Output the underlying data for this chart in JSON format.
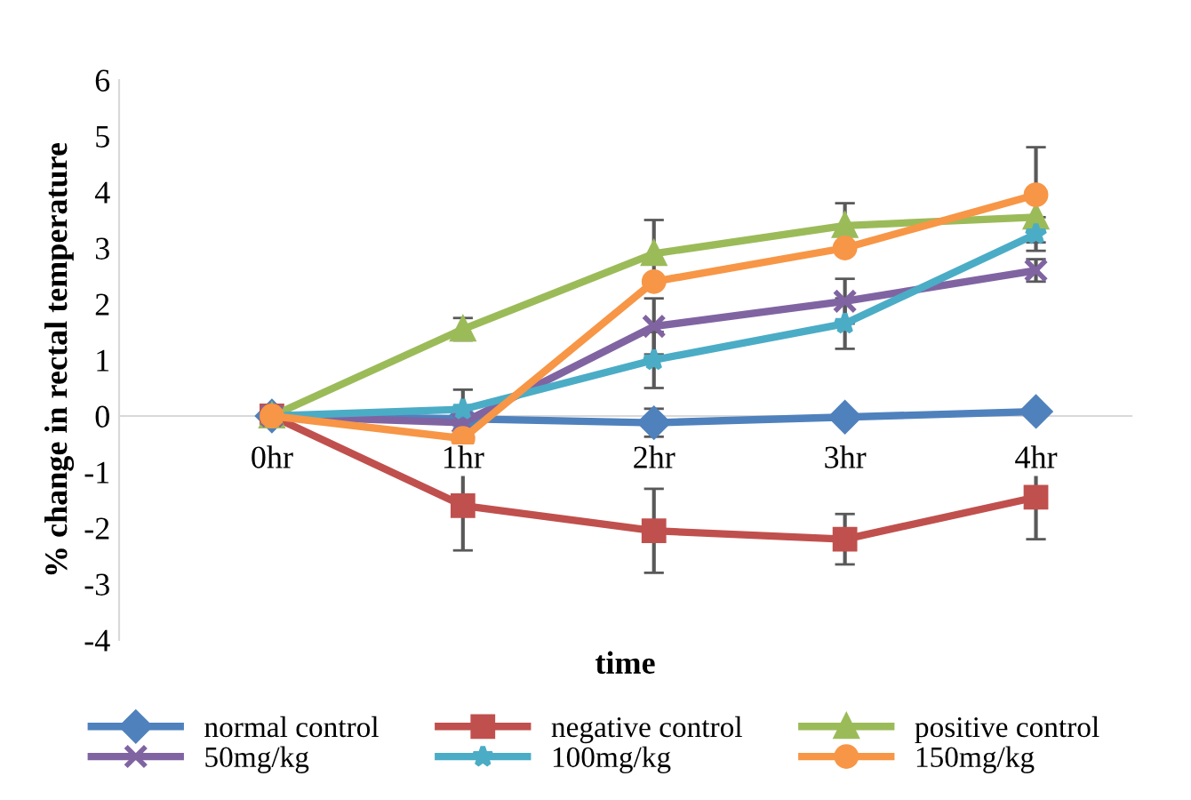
{
  "chart_data": {
    "type": "line",
    "xlabel": "time",
    "ylabel": "% change in rectal temperature",
    "categories": [
      "0hr",
      "1hr",
      "2hr",
      "3hr",
      "4hr"
    ],
    "ylim": [
      -4,
      6
    ],
    "yticks": [
      -4,
      -3,
      -2,
      -1,
      0,
      1,
      2,
      3,
      4,
      5,
      6
    ],
    "grid": false,
    "legend": "bottom",
    "line_style": "solid",
    "series": [
      {
        "name": "normal control",
        "color": "#4f81bd",
        "marker": "diamond",
        "values": [
          0,
          -0.05,
          -0.12,
          -0.02,
          0.08
        ],
        "errors": [
          null,
          null,
          0.25,
          null,
          null
        ]
      },
      {
        "name": "negative control",
        "color": "#c0504d",
        "marker": "square",
        "values": [
          0,
          -1.6,
          -2.05,
          -2.2,
          -1.45
        ],
        "errors": [
          null,
          0.8,
          0.75,
          0.45,
          0.75
        ]
      },
      {
        "name": "positive control",
        "color": "#9bbb59",
        "marker": "triangle",
        "values": [
          0,
          1.55,
          2.9,
          3.4,
          3.55
        ],
        "errors": [
          null,
          0.2,
          0.6,
          0.4,
          null
        ]
      },
      {
        "name": "50mg/kg",
        "color": "#8064a2",
        "marker": "cross",
        "values": [
          0,
          -0.12,
          1.6,
          2.05,
          2.6
        ],
        "errors": [
          null,
          null,
          0.5,
          0.4,
          0.2
        ]
      },
      {
        "name": "100mg/kg",
        "color": "#4bacc6",
        "marker": "star",
        "values": [
          0,
          0.12,
          1.0,
          1.65,
          3.25
        ],
        "errors": [
          null,
          0.35,
          0.5,
          0.45,
          0.3
        ]
      },
      {
        "name": "150mg/kg",
        "color": "#f79646",
        "marker": "circle",
        "values": [
          0,
          -0.4,
          2.4,
          3.0,
          3.95
        ],
        "errors": [
          null,
          0.35,
          null,
          null,
          0.85
        ]
      }
    ]
  }
}
